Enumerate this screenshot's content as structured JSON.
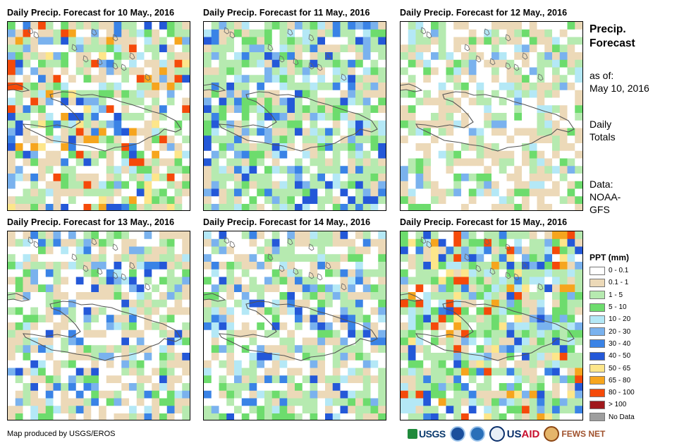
{
  "panels": [
    {
      "title": "Daily Precip. Forecast for 10 May., 2016",
      "seed": 10,
      "wet": 0.55,
      "maxLevel": 10
    },
    {
      "title": "Daily Precip. Forecast for 11 May., 2016",
      "seed": 11,
      "wet": 0.7,
      "maxLevel": 7
    },
    {
      "title": "Daily Precip. Forecast for 12 May., 2016",
      "seed": 12,
      "wet": 0.35,
      "maxLevel": 5
    },
    {
      "title": "Daily Precip. Forecast for 13 May., 2016",
      "seed": 13,
      "wet": 0.4,
      "maxLevel": 7
    },
    {
      "title": "Daily Precip. Forecast for 14 May., 2016",
      "seed": 14,
      "wet": 0.5,
      "maxLevel": 7
    },
    {
      "title": "Daily Precip. Forecast for 15 May., 2016",
      "seed": 15,
      "wet": 0.75,
      "maxLevel": 10
    }
  ],
  "side": {
    "title_line1": "Precip.",
    "title_line2": "Forecast",
    "asof_label": "as of:",
    "asof_date": "May 10, 2016",
    "totals_line1": "Daily",
    "totals_line2": "Totals",
    "data_line1": "Data:",
    "data_line2": "NOAA-",
    "data_line3": "GFS"
  },
  "legend": {
    "title": "PPT (mm)",
    "items": [
      {
        "label": "0 - 0.1",
        "color": "#ffffff"
      },
      {
        "label": "0.1 - 1",
        "color": "#ecd9b8"
      },
      {
        "label": "1 - 5",
        "color": "#b6eab0"
      },
      {
        "label": "5 - 10",
        "color": "#6ddc6d"
      },
      {
        "label": "10 - 20",
        "color": "#b4e8f6"
      },
      {
        "label": "20 - 30",
        "color": "#7ab2ee"
      },
      {
        "label": "30 - 40",
        "color": "#3a83e6"
      },
      {
        "label": "40 - 50",
        "color": "#2458d8"
      },
      {
        "label": "50 - 65",
        "color": "#fde68a"
      },
      {
        "label": "65 - 80",
        "color": "#f6a51e"
      },
      {
        "label": "80 - 100",
        "color": "#f54a0a"
      },
      {
        "label": "> 100",
        "color": "#a0191c"
      },
      {
        "label": "No Data",
        "color": "#9e9e9e"
      }
    ]
  },
  "credit": "Map produced by USGS/EROS",
  "logos": {
    "usgs": "USGS",
    "usaid_prefix": "US",
    "usaid_suffix": "AID",
    "fews": "FEWS NET"
  }
}
